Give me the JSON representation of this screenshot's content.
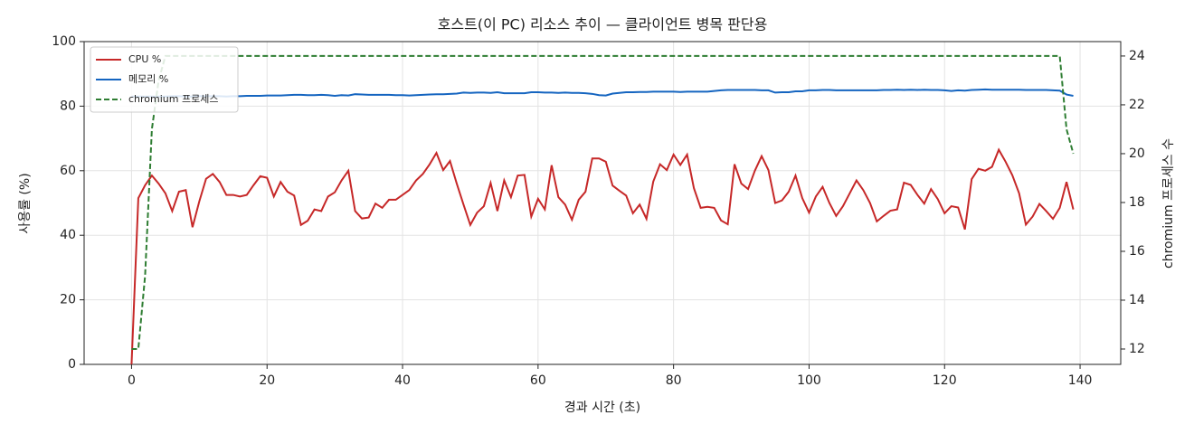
{
  "chart_data": {
    "type": "line",
    "title": "호스트(이 PC) 리소스 추이 — 클라이언트 병목 판단용",
    "x_label": "경과 시간 (초)",
    "y_label": "사용률 (%)",
    "y2_label": "chromium 프로세스 수",
    "x": [
      0,
      1,
      2,
      3,
      4,
      5,
      6,
      7,
      8,
      9,
      10,
      11,
      12,
      13,
      14,
      15,
      16,
      17,
      18,
      19,
      20,
      21,
      22,
      23,
      24,
      25,
      26,
      27,
      28,
      29,
      30,
      31,
      32,
      33,
      34,
      35,
      36,
      37,
      38,
      39,
      40,
      41,
      42,
      43,
      44,
      45,
      46,
      47,
      48,
      49,
      50,
      51,
      52,
      53,
      54,
      55,
      56,
      57,
      58,
      59,
      60,
      61,
      62,
      63,
      64,
      65,
      66,
      67,
      68,
      69,
      70,
      71,
      72,
      73,
      74,
      75,
      76,
      77,
      78,
      79,
      80,
      81,
      82,
      83,
      84,
      85,
      86,
      87,
      88,
      89,
      90,
      91,
      92,
      93,
      94,
      95,
      96,
      97,
      98,
      99,
      100,
      101,
      102,
      103,
      104,
      105,
      106,
      107,
      108,
      109,
      110,
      111,
      112,
      113,
      114,
      115,
      116,
      117,
      118,
      119,
      120,
      121,
      122,
      123,
      124,
      125,
      126,
      127,
      128,
      129,
      130,
      131,
      132,
      133,
      134,
      135,
      136,
      137,
      138,
      139
    ],
    "series": [
      {
        "name": "CPU %",
        "color": "#c62828",
        "axis": "y",
        "dashed": false,
        "values": [
          0,
          51.5,
          55.5,
          58.5,
          56,
          53,
          47.5,
          53.5,
          54,
          42.5,
          50.5,
          57.5,
          59,
          56.5,
          52.5,
          52.5,
          52,
          52.5,
          55.5,
          58.3,
          57.8,
          52,
          56.5,
          53.5,
          52.3,
          43.2,
          44.5,
          48,
          47.5,
          52,
          53.3,
          57,
          60,
          47.5,
          45.2,
          45.5,
          49.8,
          48.5,
          51,
          51,
          52.5,
          54,
          57,
          59,
          62,
          65.5,
          60.2,
          63,
          56,
          49.5,
          43.2,
          47,
          49,
          56.2,
          47.5,
          57,
          51.8,
          58.5,
          58.7,
          45.8,
          51.3,
          48,
          61.7,
          51.8,
          49.5,
          44.8,
          51,
          53.5,
          63.8,
          63.8,
          62.8,
          55.4,
          53.8,
          52.3,
          46.8,
          49.5,
          45.1,
          56.6,
          62,
          60.2,
          65,
          61.8,
          65,
          54.6,
          48.5,
          48.8,
          48.5,
          44.6,
          43.4,
          62,
          56,
          54.3,
          60,
          64.5,
          60.2,
          50,
          50.8,
          53.5,
          58.5,
          51.5,
          47,
          52,
          55,
          50,
          46,
          49,
          53,
          57,
          54,
          50,
          44.3,
          46,
          47.6,
          48,
          56.3,
          55.6,
          52.5,
          49.8,
          54.3,
          51.2,
          46.8,
          49,
          48.6,
          41.8,
          57.4,
          60.6,
          60,
          61.2,
          66.5,
          62.8,
          58.6,
          53,
          43.3,
          45.8,
          49.7,
          47.5,
          45.1,
          48.5,
          56.5,
          48
        ]
      },
      {
        "name": "메모리 %",
        "color": "#1565c0",
        "axis": "y",
        "dashed": false,
        "values": [
          83.0,
          83.0,
          83.0,
          83.0,
          83.0,
          83.0,
          83.1,
          83.1,
          83.0,
          83.0,
          83.1,
          83.1,
          83.1,
          83.1,
          83.0,
          83.1,
          83.1,
          83.2,
          83.2,
          83.2,
          83.3,
          83.3,
          83.3,
          83.4,
          83.5,
          83.5,
          83.4,
          83.4,
          83.5,
          83.4,
          83.2,
          83.4,
          83.3,
          83.7,
          83.6,
          83.5,
          83.5,
          83.5,
          83.5,
          83.4,
          83.4,
          83.3,
          83.4,
          83.5,
          83.6,
          83.7,
          83.7,
          83.8,
          83.9,
          84.2,
          84.1,
          84.2,
          84.2,
          84.1,
          84.3,
          84.0,
          84.0,
          84.0,
          84.0,
          84.3,
          84.3,
          84.2,
          84.2,
          84.1,
          84.2,
          84.1,
          84.1,
          84.0,
          83.8,
          83.4,
          83.3,
          83.9,
          84.1,
          84.3,
          84.3,
          84.4,
          84.4,
          84.5,
          84.5,
          84.5,
          84.5,
          84.4,
          84.5,
          84.5,
          84.5,
          84.5,
          84.7,
          84.9,
          85.0,
          85.0,
          85.0,
          85.0,
          85.0,
          84.9,
          84.9,
          84.2,
          84.3,
          84.3,
          84.6,
          84.6,
          84.9,
          84.9,
          85.0,
          85.0,
          84.9,
          84.9,
          84.9,
          84.9,
          84.9,
          84.9,
          84.9,
          85.0,
          85.0,
          85.1,
          85.0,
          85.1,
          85.0,
          85.1,
          85.0,
          85.0,
          84.9,
          84.7,
          84.9,
          84.8,
          85.0,
          85.1,
          85.2,
          85.1,
          85.1,
          85.1,
          85.1,
          85.1,
          85.0,
          85.0,
          85.0,
          85.0,
          84.9,
          84.8,
          83.6,
          83.2
        ]
      },
      {
        "name": "chromium 프로세스",
        "color": "#2e7d32",
        "axis": "y2",
        "dashed": true,
        "values": [
          12,
          12,
          15,
          21,
          23,
          24,
          24,
          24,
          24,
          24,
          24,
          24,
          24,
          24,
          24,
          24,
          24,
          24,
          24,
          24,
          24,
          24,
          24,
          24,
          24,
          24,
          24,
          24,
          24,
          24,
          24,
          24,
          24,
          24,
          24,
          24,
          24,
          24,
          24,
          24,
          24,
          24,
          24,
          24,
          24,
          24,
          24,
          24,
          24,
          24,
          24,
          24,
          24,
          24,
          24,
          24,
          24,
          24,
          24,
          24,
          24,
          24,
          24,
          24,
          24,
          24,
          24,
          24,
          24,
          24,
          24,
          24,
          24,
          24,
          24,
          24,
          24,
          24,
          24,
          24,
          24,
          24,
          24,
          24,
          24,
          24,
          24,
          24,
          24,
          24,
          24,
          24,
          24,
          24,
          24,
          24,
          24,
          24,
          24,
          24,
          24,
          24,
          24,
          24,
          24,
          24,
          24,
          24,
          24,
          24,
          24,
          24,
          24,
          24,
          24,
          24,
          24,
          24,
          24,
          24,
          24,
          24,
          24,
          24,
          24,
          24,
          24,
          24,
          24,
          24,
          24,
          24,
          24,
          24,
          24,
          24,
          24,
          24,
          21,
          20
        ]
      }
    ],
    "xlim": [
      -7,
      146
    ],
    "xticks": [
      0,
      20,
      40,
      60,
      80,
      100,
      120,
      140
    ],
    "ylim": [
      0,
      100
    ],
    "yticks": [
      0,
      20,
      40,
      60,
      80,
      100
    ],
    "y2lim": [
      11.37,
      24.59
    ],
    "y2ticks": [
      12,
      14,
      16,
      18,
      20,
      22,
      24
    ],
    "grid": true,
    "legend": "upper-left"
  }
}
